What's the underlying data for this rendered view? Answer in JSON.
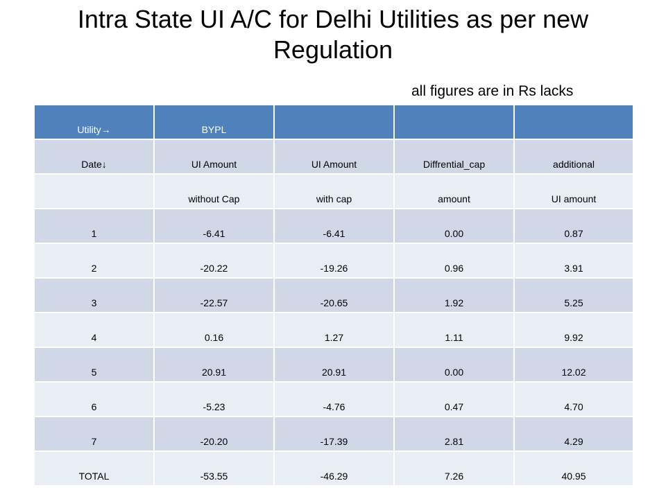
{
  "title": {
    "line1": "Intra State UI A/C for Delhi Utilities as per new",
    "line2": "Regulation"
  },
  "note": "all figures are in Rs lacks",
  "table": {
    "header": [
      "Utility→",
      "BYPL",
      "",
      "",
      ""
    ],
    "subheader1": [
      "Date↓",
      "UI Amount",
      "UI Amount",
      "Diffrential_cap",
      "additional"
    ],
    "subheader2": [
      "",
      "without Cap",
      "with cap",
      "amount",
      "UI amount"
    ],
    "rows": [
      [
        "1",
        "-6.41",
        "-6.41",
        "0.00",
        "0.87"
      ],
      [
        "2",
        "-20.22",
        "-19.26",
        "0.96",
        "3.91"
      ],
      [
        "3",
        "-22.57",
        "-20.65",
        "1.92",
        "5.25"
      ],
      [
        "4",
        "0.16",
        "1.27",
        "1.11",
        "9.92"
      ],
      [
        "5",
        "20.91",
        "20.91",
        "0.00",
        "12.02"
      ],
      [
        "6",
        "-5.23",
        "-4.76",
        "0.47",
        "4.70"
      ],
      [
        "7",
        "-20.20",
        "-17.39",
        "2.81",
        "4.29"
      ]
    ],
    "total": [
      "TOTAL",
      "-53.55",
      "-46.29",
      "7.26",
      "40.95"
    ]
  },
  "colors": {
    "header_bg": "#4f81bd",
    "row_dark": "#d0d8e8",
    "row_light": "#e9edf4"
  }
}
